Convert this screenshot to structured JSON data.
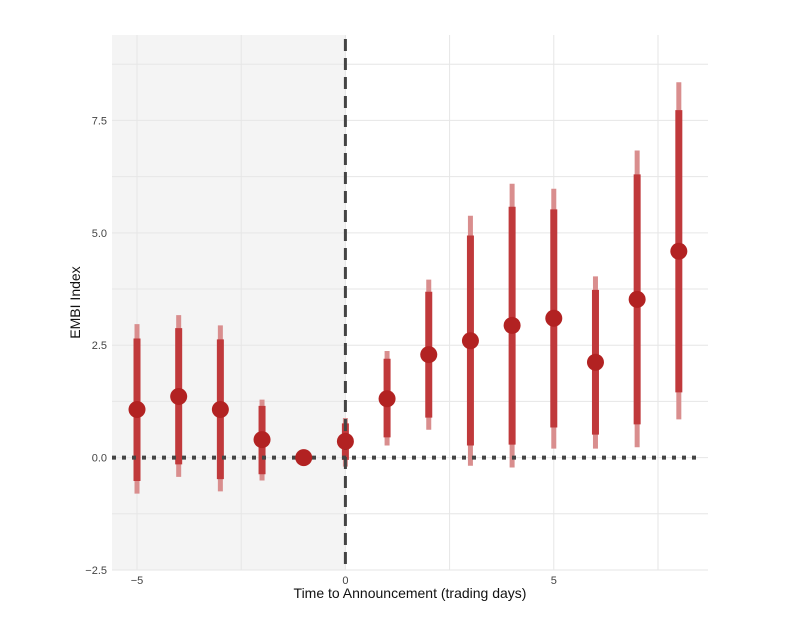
{
  "chart_data": {
    "type": "scatter",
    "title": "",
    "xlabel": "Time to Announcement (trading days)",
    "ylabel": "EMBI Index",
    "xlim": [
      -5.6,
      8.7
    ],
    "ylim": [
      -2.5,
      9.4
    ],
    "x_ticks": [
      {
        "value": -5,
        "label": "−5"
      },
      {
        "value": 0,
        "label": "0"
      },
      {
        "value": 5,
        "label": "5"
      }
    ],
    "y_ticks": [
      {
        "value": -2.5,
        "label": "−2.5"
      },
      {
        "value": 0,
        "label": "0.0"
      },
      {
        "value": 2.5,
        "label": "2.5"
      },
      {
        "value": 5,
        "label": "5.0"
      },
      {
        "value": 7.5,
        "label": "7.5"
      }
    ],
    "grid": true,
    "pre_period_shading": {
      "from": -5.6,
      "to": 0
    },
    "reference_lines": {
      "vertical_x": 0,
      "horizontal_y": 0
    },
    "series": [
      {
        "points": [
          {
            "x": -5,
            "y": 1.07,
            "ci_inner": [
              -0.52,
              2.65
            ],
            "ci_outer": [
              -0.8,
              2.97
            ]
          },
          {
            "x": -4,
            "y": 1.36,
            "ci_inner": [
              -0.15,
              2.88
            ],
            "ci_outer": [
              -0.43,
              3.17
            ]
          },
          {
            "x": -3,
            "y": 1.07,
            "ci_inner": [
              -0.48,
              2.63
            ],
            "ci_outer": [
              -0.75,
              2.94
            ]
          },
          {
            "x": -2,
            "y": 0.4,
            "ci_inner": [
              -0.37,
              1.15
            ],
            "ci_outer": [
              -0.51,
              1.29
            ]
          },
          {
            "x": -1,
            "y": 0.0,
            "ci_inner": [
              0.0,
              0.0
            ],
            "ci_outer": [
              0.0,
              0.0
            ]
          },
          {
            "x": 0,
            "y": 0.36,
            "ci_inner": [
              -0.05,
              0.76
            ],
            "ci_outer": [
              -0.2,
              0.88
            ]
          },
          {
            "x": 1,
            "y": 1.31,
            "ci_inner": [
              0.45,
              2.2
            ],
            "ci_outer": [
              0.27,
              2.37
            ]
          },
          {
            "x": 2,
            "y": 2.29,
            "ci_inner": [
              0.89,
              3.69
            ],
            "ci_outer": [
              0.62,
              3.96
            ]
          },
          {
            "x": 3,
            "y": 2.6,
            "ci_inner": [
              0.27,
              4.94
            ],
            "ci_outer": [
              -0.18,
              5.38
            ]
          },
          {
            "x": 4,
            "y": 2.94,
            "ci_inner": [
              0.29,
              5.58
            ],
            "ci_outer": [
              -0.22,
              6.09
            ]
          },
          {
            "x": 5,
            "y": 3.1,
            "ci_inner": [
              0.67,
              5.52
            ],
            "ci_outer": [
              0.2,
              5.98
            ]
          },
          {
            "x": 6,
            "y": 2.12,
            "ci_inner": [
              0.51,
              3.73
            ],
            "ci_outer": [
              0.2,
              4.03
            ]
          },
          {
            "x": 7,
            "y": 3.52,
            "ci_inner": [
              0.74,
              6.3
            ],
            "ci_outer": [
              0.23,
              6.83
            ]
          },
          {
            "x": 8,
            "y": 4.59,
            "ci_inner": [
              1.45,
              7.73
            ],
            "ci_outer": [
              0.85,
              8.35
            ]
          }
        ]
      }
    ]
  },
  "colors": {
    "point": "#b22222",
    "ci_inner": "#c0393b",
    "ci_outer": "#d98e8e",
    "shade": "#f4f4f4",
    "grid": "#e6e6e6",
    "reference": "#444444"
  }
}
